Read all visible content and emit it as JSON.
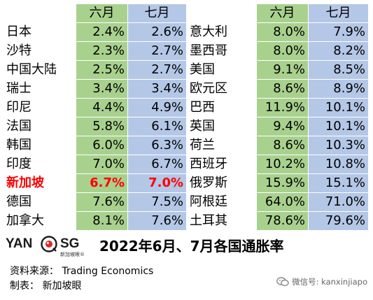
{
  "headers": {
    "name": "",
    "jun": "六月",
    "jul": "七月"
  },
  "left_table": [
    {
      "name": "日本",
      "jun": "2.4%",
      "jul": "2.6%"
    },
    {
      "name": "沙特",
      "jun": "2.3%",
      "jul": "2.7%"
    },
    {
      "name": "中国大陆",
      "jun": "2.5%",
      "jul": "2.7%"
    },
    {
      "name": "瑞士",
      "jun": "3.4%",
      "jul": "3.4%"
    },
    {
      "name": "印尼",
      "jun": "4.4%",
      "jul": "4.9%"
    },
    {
      "name": "法国",
      "jun": "5.8%",
      "jul": "6.1%"
    },
    {
      "name": "韩国",
      "jun": "6.0%",
      "jul": "6.3%"
    },
    {
      "name": "印度",
      "jun": "7.0%",
      "jul": "6.7%"
    },
    {
      "name": "新加坡",
      "jun": "6.7%",
      "jul": "7.0%",
      "highlight": true
    },
    {
      "name": "德国",
      "jun": "7.6%",
      "jul": "7.5%"
    },
    {
      "name": "加拿大",
      "jun": "8.1%",
      "jul": "7.6%"
    }
  ],
  "right_table": [
    {
      "name": "意大利",
      "jun": "8.0%",
      "jul": "7.9%"
    },
    {
      "name": "墨西哥",
      "jun": "8.0%",
      "jul": "8.2%"
    },
    {
      "name": "美国",
      "jun": "9.1%",
      "jul": "8.5%"
    },
    {
      "name": "欧元区",
      "jun": "8.6%",
      "jul": "8.9%"
    },
    {
      "name": "巴西",
      "jun": "11.9%",
      "jul": "10.1%"
    },
    {
      "name": "英国",
      "jun": "9.4%",
      "jul": "10.1%"
    },
    {
      "name": "荷兰",
      "jun": "8.6%",
      "jul": "10.3%"
    },
    {
      "name": "西班牙",
      "jun": "10.2%",
      "jul": "10.8%"
    },
    {
      "name": "俄罗斯",
      "jun": "15.9%",
      "jul": "15.1%"
    },
    {
      "name": "阿根廷",
      "jun": "64.0%",
      "jul": "71.0%"
    },
    {
      "name": "土耳其",
      "jun": "78.6%",
      "jul": "79.6%"
    }
  ],
  "colors": {
    "june_column": "#a9d18e",
    "july_column": "#b4c7e7",
    "highlight_text": "#ff0000"
  },
  "logo": {
    "left": "YAN",
    "right": "SG",
    "sub": "新加坡眼®",
    "icon": "eye-icon"
  },
  "headline": "2022年6月、7月各国通胀率",
  "credits": {
    "source": "资料来源：  Trading Economics",
    "maker": "制表：  新加坡眼"
  },
  "watermark": {
    "icon": "wechat-icon",
    "text": "微信号: kanxinjiapo"
  }
}
